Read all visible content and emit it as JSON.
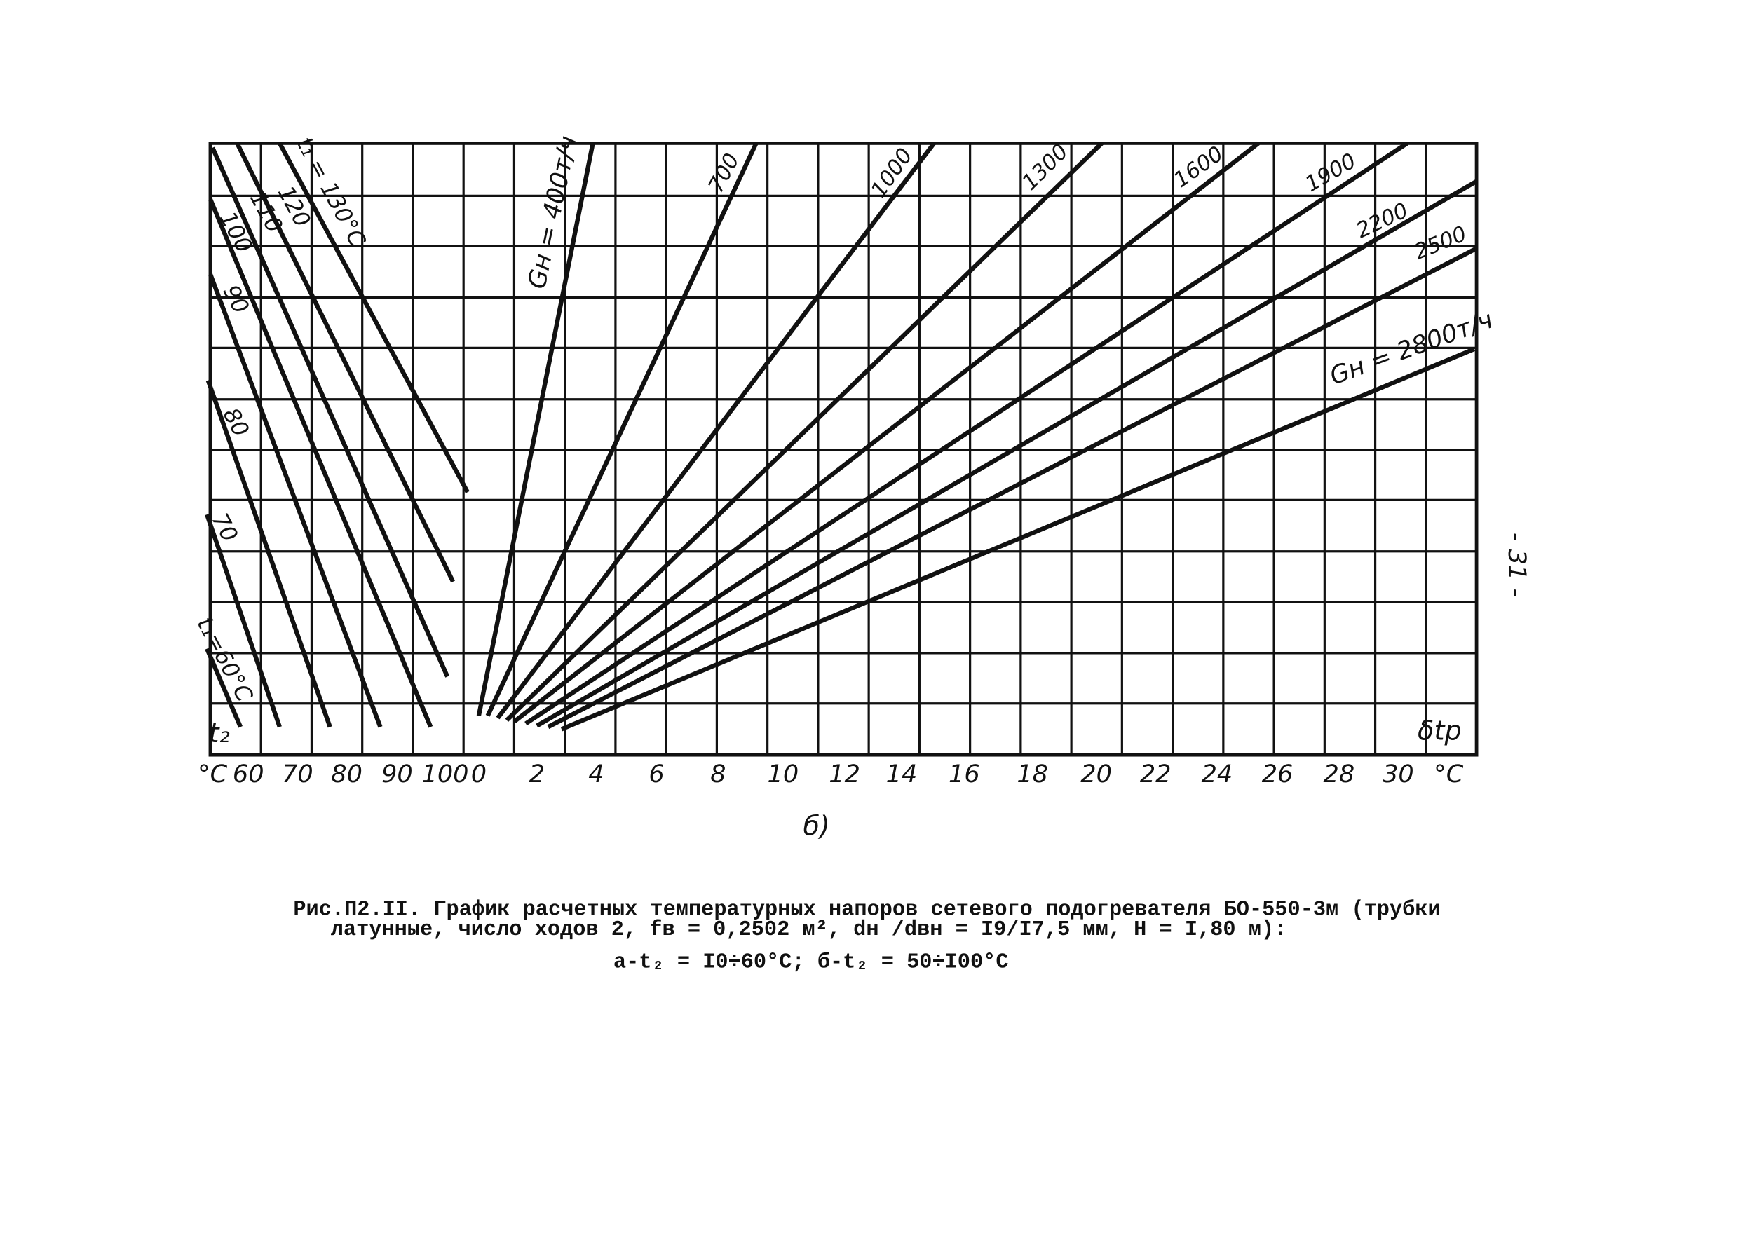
{
  "left_axis": {
    "labels": [
      "°C",
      "60",
      "70",
      "80",
      "90",
      "100"
    ]
  },
  "right_axis": {
    "labels": [
      "0",
      "2",
      "4",
      "6",
      "8",
      "10",
      "12",
      "14",
      "16",
      "18",
      "20",
      "22",
      "24",
      "26",
      "28",
      "30",
      "°C"
    ]
  },
  "left_curves": [
    "t₁ = 130°C",
    "120",
    "110",
    "100",
    "90",
    "80",
    "70",
    "t₁=60°C"
  ],
  "right_curves": [
    "Gн = 400т/ч",
    "700",
    "1000",
    "1300",
    "1600",
    "1900",
    "2200",
    "2500",
    "Gн = 2800т/ч"
  ],
  "left_axis_title": "t₂",
  "right_axis_title": "δtр",
  "subfigure": "б)",
  "page_number": "- 31 -",
  "caption": [
    "Рис.П2.II. График расчетных температурных напоров сетевого подогревателя БО-550-3м (трубки",
    "латунные, число ходов 2, fв = 0,2502 м², dн /dвн = I9/I7,5 мм, H = I,80 м):",
    "а-t₂ = I0÷60°C; б-t₂ = 50÷I00°C"
  ]
}
